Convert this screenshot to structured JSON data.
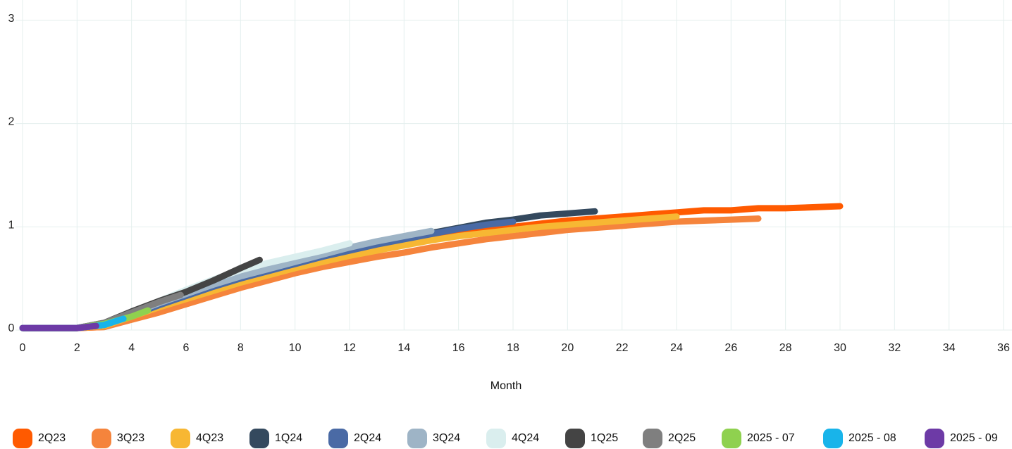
{
  "chart_data": {
    "type": "line",
    "title": "",
    "xlabel": "Month",
    "ylabel": "",
    "xlim": [
      0,
      36
    ],
    "ylim": [
      0,
      3
    ],
    "x_ticks": [
      0,
      2,
      4,
      6,
      8,
      10,
      12,
      14,
      16,
      18,
      20,
      22,
      24,
      26,
      28,
      30,
      32,
      34,
      36
    ],
    "x_tick_labels": [
      "0",
      "2",
      "4",
      "6",
      "8",
      "10",
      "12",
      "14",
      "16",
      "18",
      "20",
      "22",
      "24",
      "26",
      "28",
      "30",
      "32",
      "34",
      "36"
    ],
    "y_ticks": [
      0,
      1,
      2,
      3
    ],
    "y_tick_labels": [
      "0",
      "1",
      "2",
      "3"
    ],
    "grid": true,
    "legend_position": "bottom",
    "series": [
      {
        "name": "2Q23",
        "color": "#ff5a00",
        "points": [
          [
            0,
            0.02
          ],
          [
            2,
            0.02
          ],
          [
            3,
            0.03
          ],
          [
            4,
            0.12
          ],
          [
            5,
            0.2
          ],
          [
            6,
            0.3
          ],
          [
            7,
            0.39
          ],
          [
            8,
            0.47
          ],
          [
            9,
            0.55
          ],
          [
            10,
            0.62
          ],
          [
            11,
            0.68
          ],
          [
            12,
            0.74
          ],
          [
            13,
            0.79
          ],
          [
            14,
            0.84
          ],
          [
            15,
            0.89
          ],
          [
            16,
            0.93
          ],
          [
            17,
            0.97
          ],
          [
            18,
            1.0
          ],
          [
            19,
            1.03
          ],
          [
            20,
            1.06
          ],
          [
            21,
            1.08
          ],
          [
            22,
            1.1
          ],
          [
            23,
            1.12
          ],
          [
            24,
            1.14
          ],
          [
            25,
            1.16
          ],
          [
            26,
            1.16
          ],
          [
            27,
            1.18
          ],
          [
            28,
            1.18
          ],
          [
            29,
            1.19
          ],
          [
            30,
            1.2
          ]
        ]
      },
      {
        "name": "3Q23",
        "color": "#f5843c",
        "points": [
          [
            0,
            0.02
          ],
          [
            2,
            0.02
          ],
          [
            3,
            0.03
          ],
          [
            4,
            0.1
          ],
          [
            5,
            0.17
          ],
          [
            6,
            0.25
          ],
          [
            7,
            0.33
          ],
          [
            8,
            0.41
          ],
          [
            9,
            0.48
          ],
          [
            10,
            0.55
          ],
          [
            11,
            0.61
          ],
          [
            12,
            0.66
          ],
          [
            13,
            0.71
          ],
          [
            14,
            0.75
          ],
          [
            15,
            0.8
          ],
          [
            16,
            0.84
          ],
          [
            17,
            0.88
          ],
          [
            18,
            0.91
          ],
          [
            19,
            0.94
          ],
          [
            20,
            0.97
          ],
          [
            21,
            0.99
          ],
          [
            22,
            1.01
          ],
          [
            23,
            1.03
          ],
          [
            24,
            1.05
          ],
          [
            25,
            1.06
          ],
          [
            26,
            1.07
          ],
          [
            27,
            1.08
          ]
        ]
      },
      {
        "name": "4Q23",
        "color": "#f7b733",
        "points": [
          [
            0,
            0.02
          ],
          [
            2,
            0.02
          ],
          [
            3,
            0.04
          ],
          [
            4,
            0.13
          ],
          [
            5,
            0.22
          ],
          [
            6,
            0.3
          ],
          [
            7,
            0.38
          ],
          [
            8,
            0.46
          ],
          [
            9,
            0.53
          ],
          [
            10,
            0.6
          ],
          [
            11,
            0.66
          ],
          [
            12,
            0.72
          ],
          [
            13,
            0.77
          ],
          [
            14,
            0.82
          ],
          [
            15,
            0.87
          ],
          [
            16,
            0.91
          ],
          [
            17,
            0.94
          ],
          [
            18,
            0.97
          ],
          [
            19,
            1.0
          ],
          [
            20,
            1.02
          ],
          [
            21,
            1.04
          ],
          [
            22,
            1.06
          ],
          [
            23,
            1.08
          ],
          [
            24,
            1.1
          ]
        ]
      },
      {
        "name": "1Q24",
        "color": "#34495e",
        "points": [
          [
            0,
            0.02
          ],
          [
            2,
            0.02
          ],
          [
            3,
            0.05
          ],
          [
            4,
            0.15
          ],
          [
            5,
            0.25
          ],
          [
            6,
            0.34
          ],
          [
            7,
            0.43
          ],
          [
            8,
            0.51
          ],
          [
            9,
            0.58
          ],
          [
            10,
            0.65
          ],
          [
            11,
            0.72
          ],
          [
            12,
            0.78
          ],
          [
            13,
            0.84
          ],
          [
            14,
            0.89
          ],
          [
            15,
            0.94
          ],
          [
            16,
            0.99
          ],
          [
            17,
            1.04
          ],
          [
            18,
            1.07
          ],
          [
            19,
            1.11
          ],
          [
            20,
            1.13
          ],
          [
            21,
            1.15
          ]
        ]
      },
      {
        "name": "2Q24",
        "color": "#4a6aa5",
        "points": [
          [
            0,
            0.02
          ],
          [
            2,
            0.02
          ],
          [
            3,
            0.05
          ],
          [
            4,
            0.14
          ],
          [
            5,
            0.24
          ],
          [
            6,
            0.33
          ],
          [
            7,
            0.42
          ],
          [
            8,
            0.5
          ],
          [
            9,
            0.57
          ],
          [
            10,
            0.64
          ],
          [
            11,
            0.71
          ],
          [
            12,
            0.77
          ],
          [
            13,
            0.83
          ],
          [
            14,
            0.88
          ],
          [
            15,
            0.93
          ],
          [
            16,
            0.98
          ],
          [
            17,
            1.02
          ],
          [
            18,
            1.05
          ]
        ]
      },
      {
        "name": "3Q24",
        "color": "#9eb4c6",
        "points": [
          [
            0,
            0.02
          ],
          [
            2,
            0.02
          ],
          [
            3,
            0.05
          ],
          [
            4,
            0.16
          ],
          [
            5,
            0.26
          ],
          [
            6,
            0.35
          ],
          [
            7,
            0.44
          ],
          [
            8,
            0.52
          ],
          [
            9,
            0.59
          ],
          [
            10,
            0.66
          ],
          [
            11,
            0.73
          ],
          [
            12,
            0.8
          ],
          [
            13,
            0.86
          ],
          [
            14,
            0.91
          ],
          [
            15,
            0.96
          ]
        ]
      },
      {
        "name": "4Q24",
        "color": "#daeeee",
        "points": [
          [
            0,
            0.02
          ],
          [
            2,
            0.02
          ],
          [
            3,
            0.06
          ],
          [
            4,
            0.17
          ],
          [
            5,
            0.28
          ],
          [
            6,
            0.39
          ],
          [
            7,
            0.49
          ],
          [
            8,
            0.58
          ],
          [
            9,
            0.65
          ],
          [
            10,
            0.71
          ],
          [
            11,
            0.77
          ],
          [
            12,
            0.84
          ]
        ]
      },
      {
        "name": "1Q25",
        "color": "#444444",
        "points": [
          [
            0,
            0.02
          ],
          [
            2,
            0.02
          ],
          [
            3,
            0.07
          ],
          [
            4,
            0.18
          ],
          [
            5,
            0.28
          ],
          [
            6,
            0.37
          ],
          [
            7,
            0.48
          ],
          [
            8,
            0.6
          ],
          [
            8.7,
            0.68
          ]
        ]
      },
      {
        "name": "2Q25",
        "color": "#7f7f7f",
        "points": [
          [
            0,
            0.02
          ],
          [
            2,
            0.02
          ],
          [
            3,
            0.07
          ],
          [
            4,
            0.17
          ],
          [
            5,
            0.27
          ],
          [
            5.8,
            0.34
          ]
        ]
      },
      {
        "name": "2025 - 07",
        "color": "#8fd14f",
        "points": [
          [
            0,
            0.02
          ],
          [
            2,
            0.02
          ],
          [
            3,
            0.06
          ],
          [
            4,
            0.13
          ],
          [
            4.6,
            0.19
          ]
        ]
      },
      {
        "name": "2025 - 08",
        "color": "#18b4ea",
        "points": [
          [
            0,
            0.02
          ],
          [
            2,
            0.02
          ],
          [
            3,
            0.05
          ],
          [
            3.7,
            0.11
          ]
        ]
      },
      {
        "name": "2025 - 09",
        "color": "#6d3aa6",
        "points": [
          [
            0,
            0.02
          ],
          [
            1,
            0.02
          ],
          [
            2,
            0.02
          ],
          [
            2.7,
            0.04
          ]
        ]
      }
    ]
  }
}
